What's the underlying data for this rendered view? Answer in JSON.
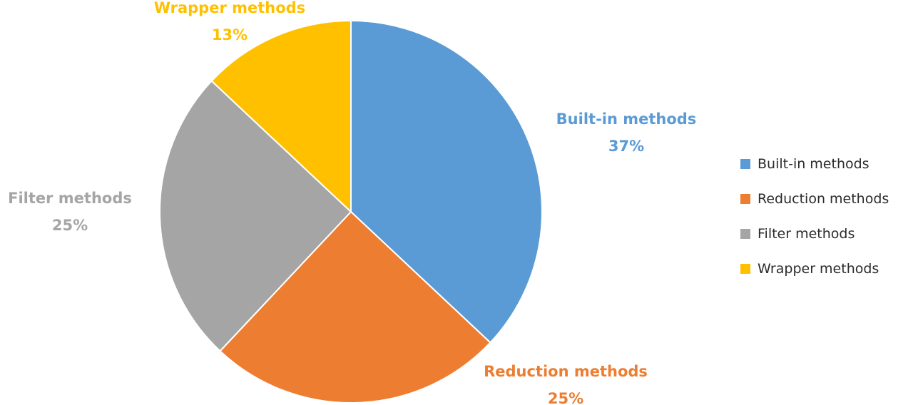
{
  "chart_data": {
    "type": "pie",
    "start_angle_deg": 0,
    "direction": "clockwise",
    "slices": [
      {
        "name": "Built-in methods",
        "value": 37,
        "label": "37%",
        "color": "#5B9BD5"
      },
      {
        "name": "Reduction methods",
        "value": 25,
        "label": "25%",
        "color": "#ED7D31"
      },
      {
        "name": "Filter methods",
        "value": 25,
        "label": "25%",
        "color": "#A5A5A5"
      },
      {
        "name": "Wrapper methods",
        "value": 13,
        "label": "13%",
        "color": "#FFC000"
      }
    ],
    "legend": {
      "placement": "right",
      "entries": [
        "Built-in methods",
        "Reduction methods",
        "Filter methods",
        "Wrapper methods"
      ]
    }
  }
}
